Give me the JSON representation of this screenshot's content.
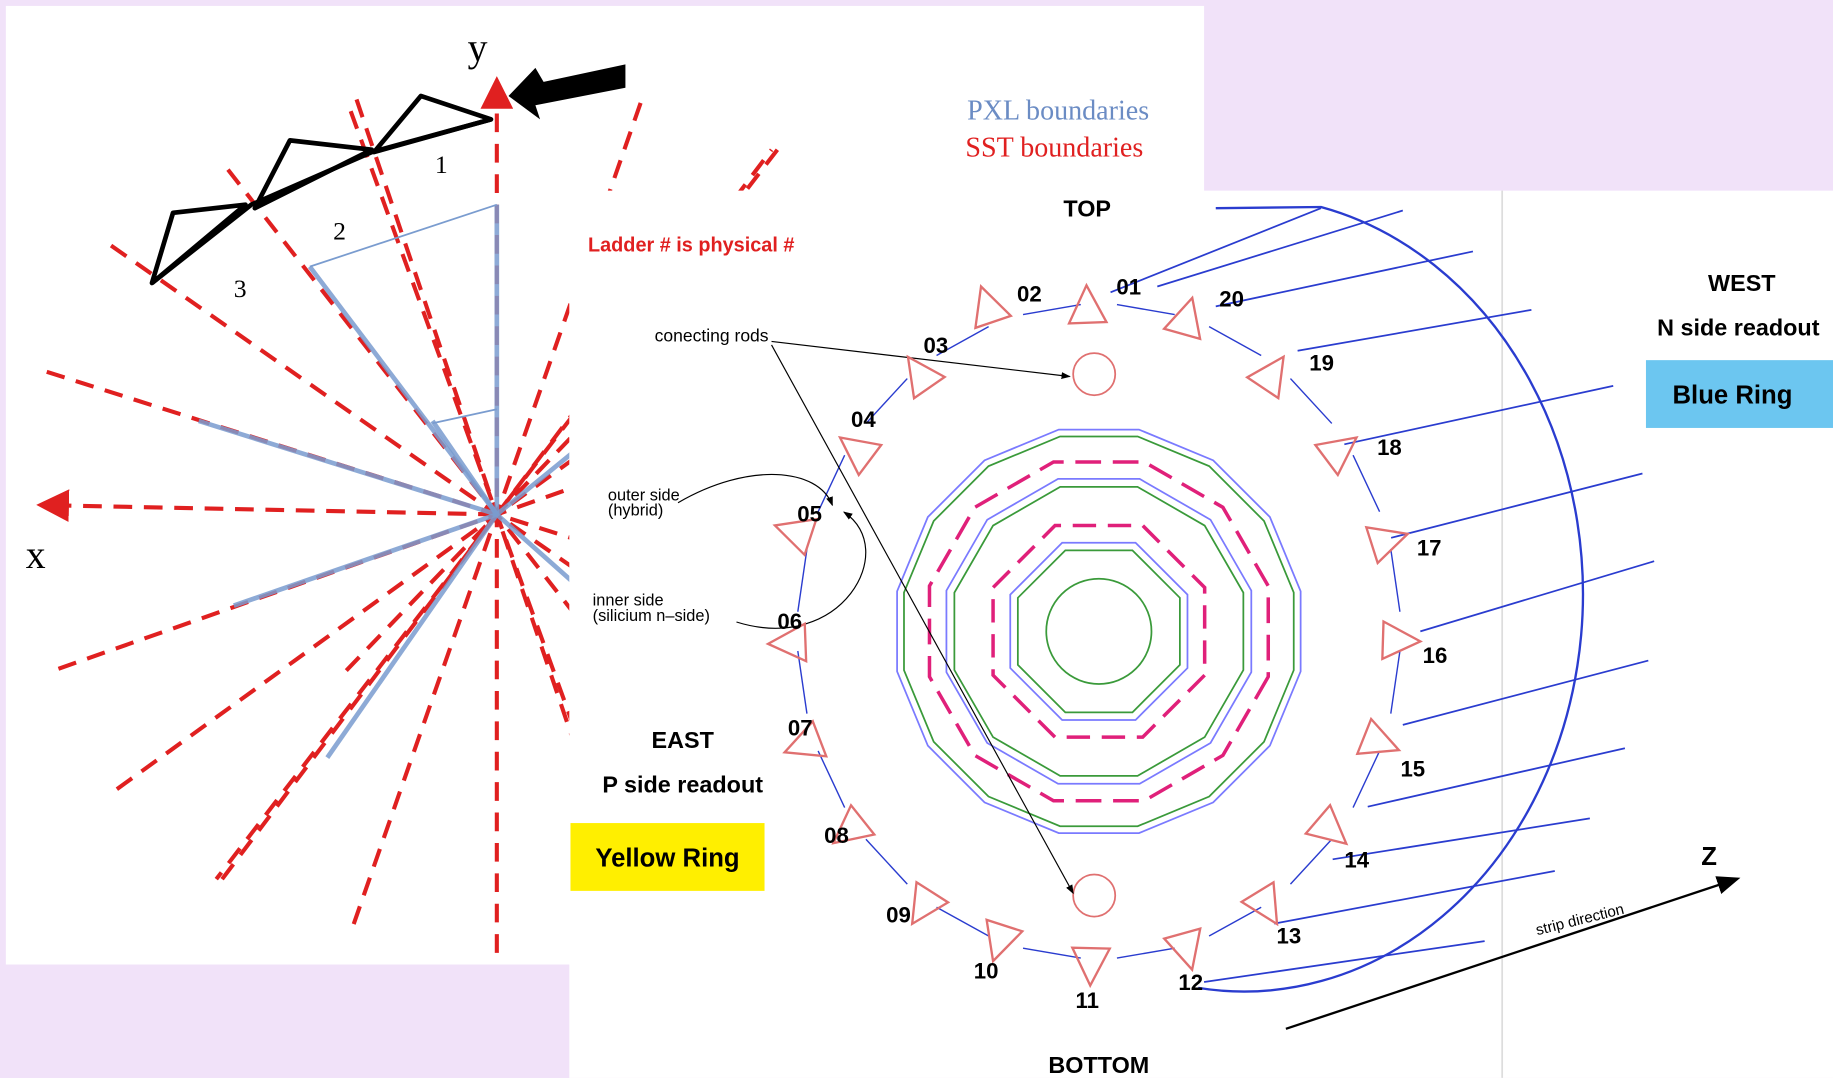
{
  "left_diagram": {
    "axis_y": "y",
    "axis_x": "x",
    "modules": [
      "1",
      "2",
      "3"
    ],
    "legend": [
      "PXL boundaries",
      "SST boundaries"
    ]
  },
  "right_diagram": {
    "top": "TOP",
    "bottom": "BOTTOM",
    "note": "Ladder # is physical #",
    "connecting_rods": "conecting rods",
    "outer_side": [
      "outer side",
      "(hybrid)"
    ],
    "inner_side": [
      "inner side",
      "(silicium n–side)"
    ],
    "ladders": [
      "01",
      "02",
      "03",
      "04",
      "05",
      "06",
      "07",
      "08",
      "09",
      "10",
      "11",
      "12",
      "13",
      "14",
      "15",
      "16",
      "17",
      "18",
      "19",
      "20"
    ],
    "east": {
      "label": "EAST",
      "readout": "P side readout",
      "ring": "Yellow Ring"
    },
    "west": {
      "label": "WEST",
      "readout": "N side readout",
      "ring": "Blue Ring"
    },
    "z_axis": "Z",
    "strip_direction": "strip direction"
  }
}
